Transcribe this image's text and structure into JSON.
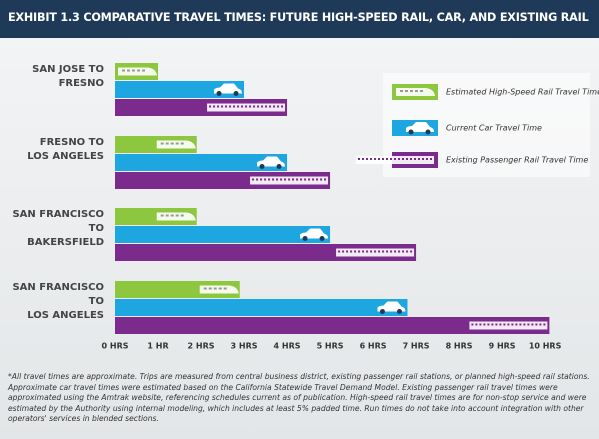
{
  "chart_data": {
    "type": "hbar",
    "title": "EXHIBIT 1.3 COMPARATIVE TRAVEL TIMES: FUTURE HIGH-SPEED RAIL, CAR, AND EXISTING RAIL",
    "categories": [
      "SAN JOSE TO\nFRESNO",
      "FRESNO TO\nLOS ANGELES",
      "SAN FRANCISCO TO\nBAKERSFIELD",
      "SAN FRANCISCO TO\nLOS ANGELES"
    ],
    "series": [
      {
        "name": "Estimated High-Speed Rail Travel Time",
        "color": "#8dc63f",
        "values": [
          1.0,
          1.9,
          1.9,
          2.9
        ]
      },
      {
        "name": "Current Car Travel Time",
        "color": "#1ea6e0",
        "values": [
          3.0,
          4.0,
          5.0,
          6.8
        ]
      },
      {
        "name": "Existing Passenger Rail Travel Time",
        "color": "#7b2b8c",
        "values": [
          4.0,
          5.0,
          7.0,
          10.1
        ]
      }
    ],
    "xlim": [
      0,
      10.3
    ],
    "xticks": [
      {
        "value": 0,
        "label": "0 HRS"
      },
      {
        "value": 1,
        "label": "1 HR"
      },
      {
        "value": 2,
        "label": "2 HRS"
      },
      {
        "value": 3,
        "label": "3 HRS"
      },
      {
        "value": 4,
        "label": "4 HRS"
      },
      {
        "value": 5,
        "label": "5 HRS"
      },
      {
        "value": 6,
        "label": "6 HRS"
      },
      {
        "value": 7,
        "label": "7 HRS"
      },
      {
        "value": 8,
        "label": "8 HRS"
      },
      {
        "value": 9,
        "label": "9 HRS"
      },
      {
        "value": 10,
        "label": "10 HRS"
      }
    ],
    "grid": false,
    "legend": "right",
    "note": "*All travel times are approximate. Trips are measured from central business district, existing passenger rail stations, or planned high-speed rail stations. Approximate car travel times were estimated based on the California Statewide Travel Demand Model. Existing passenger rail travel times were approximated using the Amtrak website, referencing schedules current as of publication.  High-speed rail travel times are for non-stop service and were estimated by the Authority using internal modeling, which includes at least 5% padded time. Run times do not take into account integration with other operators' services in blended sections."
  }
}
